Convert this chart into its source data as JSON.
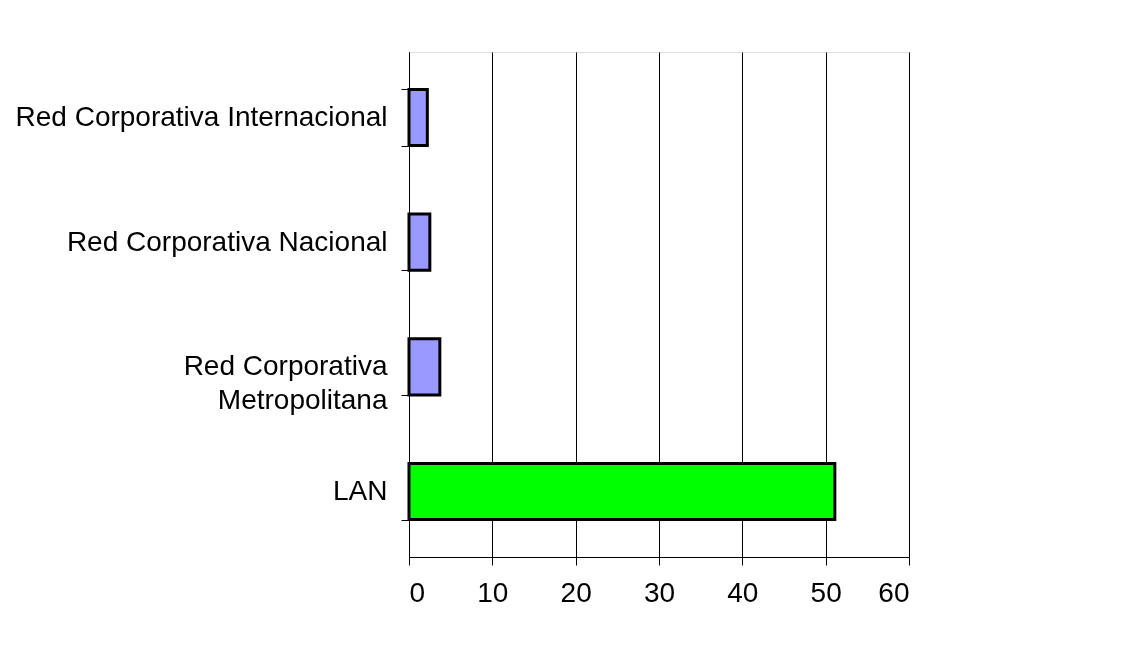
{
  "chart_data": {
    "type": "bar",
    "orientation": "horizontal",
    "categories": [
      "Red Corporativa Internacional",
      "Red Corporativa Nacional",
      "Red Corporativa\nMetropolitana",
      "LAN"
    ],
    "values": [
      2.2,
      2.5,
      3.7,
      51.1
    ],
    "colors": [
      "#9999ff",
      "#9999ff",
      "#9999ff",
      "#00ff00"
    ],
    "xlim": [
      0,
      60
    ],
    "xticks": [
      0,
      10,
      20,
      30,
      40,
      50,
      60
    ],
    "grid": "x",
    "legend": false
  }
}
